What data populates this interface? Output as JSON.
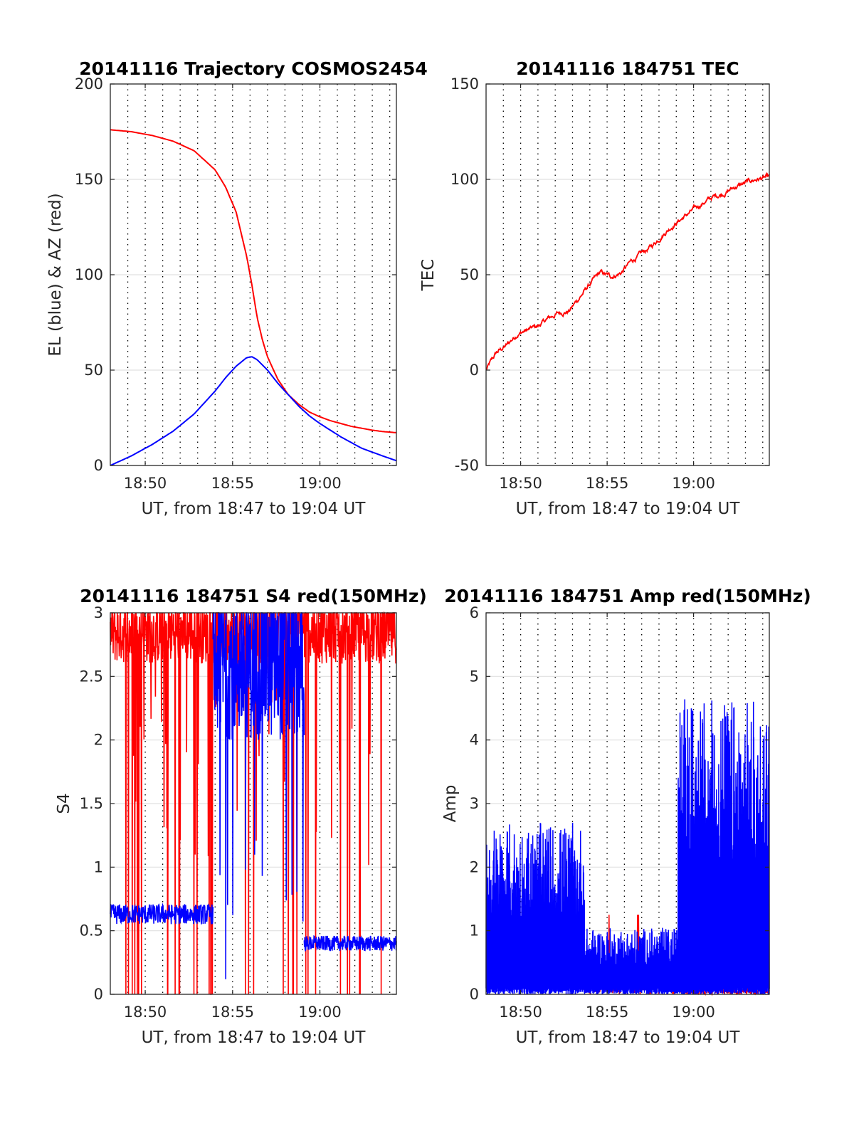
{
  "chart_data": [
    {
      "type": "line",
      "title": "20141116 Trajectory COSMOS2454",
      "xlabel": "UT, from 18:47 to 19:04 UT",
      "ylabel": "EL (blue) & AZ (red)",
      "xlim": [
        18.8,
        19.073
      ],
      "ylim": [
        0,
        200
      ],
      "xticks": [
        {
          "v": 18.8333,
          "label": "18:50"
        },
        {
          "v": 18.9167,
          "label": "18:55"
        },
        {
          "v": 19.0,
          "label": "19:00"
        }
      ],
      "yticks": [
        {
          "v": 0,
          "label": "0"
        },
        {
          "v": 50,
          "label": "50"
        },
        {
          "v": 100,
          "label": "100"
        },
        {
          "v": 150,
          "label": "150"
        },
        {
          "v": 200,
          "label": "200"
        }
      ],
      "grid": "vertical dotted every minute, horizontal solid light gray",
      "series": [
        {
          "color": "#ff0000",
          "x": [
            18.8,
            18.82,
            18.84,
            18.86,
            18.88,
            18.9,
            18.91,
            18.92,
            18.93,
            18.935,
            18.94,
            18.945,
            18.95,
            18.96,
            18.97,
            18.98,
            18.99,
            19.0,
            19.01,
            19.02,
            19.03,
            19.04,
            19.05,
            19.06,
            19.073
          ],
          "y": [
            176,
            175,
            173,
            170,
            165,
            155,
            146,
            133,
            110,
            95,
            78,
            66,
            57,
            45,
            37,
            32,
            28,
            25.5,
            23.5,
            22,
            20.5,
            19.5,
            18.5,
            17.8,
            17.2
          ]
        },
        {
          "color": "#0000ff",
          "x": [
            18.8,
            18.82,
            18.84,
            18.86,
            18.88,
            18.9,
            18.91,
            18.92,
            18.93,
            18.935,
            18.94,
            18.95,
            18.96,
            18.97,
            18.98,
            18.99,
            19.0,
            19.01,
            19.02,
            19.03,
            19.04,
            19.05,
            19.06,
            19.073
          ],
          "y": [
            0,
            5,
            11,
            18,
            27,
            39,
            46,
            52,
            56.5,
            57,
            55.5,
            50,
            43,
            37,
            31,
            26,
            22,
            18.5,
            15,
            12,
            9,
            7,
            5,
            2.5
          ]
        }
      ]
    },
    {
      "type": "line",
      "title": "20141116 184751 TEC",
      "xlabel": "UT, from 18:47 to 19:04 UT",
      "ylabel": "TEC",
      "xlim": [
        18.8,
        19.073
      ],
      "ylim": [
        -50,
        150
      ],
      "xticks": [
        {
          "v": 18.8333,
          "label": "18:50"
        },
        {
          "v": 18.9167,
          "label": "18:55"
        },
        {
          "v": 19.0,
          "label": "19:00"
        }
      ],
      "yticks": [
        {
          "v": -50,
          "label": "-50"
        },
        {
          "v": 0,
          "label": "0"
        },
        {
          "v": 50,
          "label": "50"
        },
        {
          "v": 100,
          "label": "100"
        },
        {
          "v": 150,
          "label": "150"
        }
      ],
      "grid": "vertical dotted every minute, horizontal solid light gray",
      "series": [
        {
          "color": "#ff0000",
          "x": [
            18.8,
            18.81,
            18.82,
            18.83,
            18.84,
            18.85,
            18.86,
            18.87,
            18.88,
            18.89,
            18.9,
            18.91,
            18.92,
            18.93,
            18.94,
            18.95,
            18.96,
            18.97,
            18.98,
            18.99,
            19.0,
            19.01,
            19.02,
            19.03,
            19.04,
            19.05,
            19.06,
            19.073
          ],
          "y": [
            0,
            9,
            13,
            19,
            21,
            23,
            27,
            30,
            31,
            38,
            45,
            51,
            49,
            51,
            57,
            61,
            65,
            71,
            76,
            80,
            84,
            88,
            91,
            93,
            96,
            98,
            100,
            101
          ]
        }
      ]
    },
    {
      "type": "line",
      "title": "20141116 184751 S4 red(150MHz)",
      "xlabel": "UT, from 18:47 to 19:04 UT",
      "ylabel": "S4",
      "xlim": [
        18.8,
        19.073
      ],
      "ylim": [
        0,
        3
      ],
      "xticks": [
        {
          "v": 18.8333,
          "label": "18:50"
        },
        {
          "v": 18.9167,
          "label": "18:55"
        },
        {
          "v": 19.0,
          "label": "19:00"
        }
      ],
      "yticks": [
        {
          "v": 0,
          "label": "0"
        },
        {
          "v": 0.5,
          "label": "0.5"
        },
        {
          "v": 1,
          "label": "1"
        },
        {
          "v": 1.5,
          "label": "1.5"
        },
        {
          "v": 2,
          "label": "2"
        },
        {
          "v": 2.5,
          "label": "2.5"
        },
        {
          "v": 3,
          "label": "3"
        }
      ],
      "grid": "vertical dotted every minute, horizontal solid light gray",
      "series": [
        {
          "color": "#ff0000",
          "x_start": 18.8,
          "x_end": 19.073,
          "mean": 2.85,
          "spread": 0.25,
          "dropouts_to_zero": true
        },
        {
          "color": "#0000ff",
          "segments": [
            {
              "x_start": 18.8,
              "x_end": 18.898,
              "mean": 0.63,
              "spread": 0.08
            },
            {
              "x_start": 18.898,
              "x_end": 18.985,
              "mean": 2.6,
              "spread": 0.6
            },
            {
              "x_start": 18.985,
              "x_end": 19.073,
              "mean": 0.4,
              "spread": 0.06
            }
          ]
        }
      ]
    },
    {
      "type": "line",
      "title": "20141116 184751 Amp red(150MHz)",
      "xlabel": "UT, from 18:47 to 19:04 UT",
      "ylabel": "Amp",
      "xlim": [
        18.8,
        19.073
      ],
      "ylim": [
        0,
        6
      ],
      "xticks": [
        {
          "v": 18.8333,
          "label": "18:50"
        },
        {
          "v": 18.9167,
          "label": "18:55"
        },
        {
          "v": 19.0,
          "label": "19:00"
        }
      ],
      "yticks": [
        {
          "v": 0,
          "label": "0"
        },
        {
          "v": 1,
          "label": "1"
        },
        {
          "v": 2,
          "label": "2"
        },
        {
          "v": 3,
          "label": "3"
        },
        {
          "v": 4,
          "label": "4"
        },
        {
          "v": 5,
          "label": "5"
        },
        {
          "v": 6,
          "label": "6"
        }
      ],
      "grid": "vertical dotted every minute, horizontal solid light gray",
      "series": [
        {
          "color": "#ff0000",
          "segments": [
            {
              "x_start": 18.89,
              "x_end": 18.99,
              "mean": 0.2,
              "peak": 1.25
            },
            {
              "x_start": 18.99,
              "x_end": 19.073,
              "mean": 0.05,
              "peak": 0.2
            }
          ]
        },
        {
          "color": "#0000ff",
          "segments": [
            {
              "x_start": 18.8,
              "x_end": 18.895,
              "min": 0,
              "max": 2.7
            },
            {
              "x_start": 18.895,
              "x_end": 18.985,
              "min": 0,
              "max": 1.05
            },
            {
              "x_start": 18.985,
              "x_end": 19.073,
              "min": 0,
              "max": 4.65
            }
          ]
        }
      ]
    }
  ]
}
